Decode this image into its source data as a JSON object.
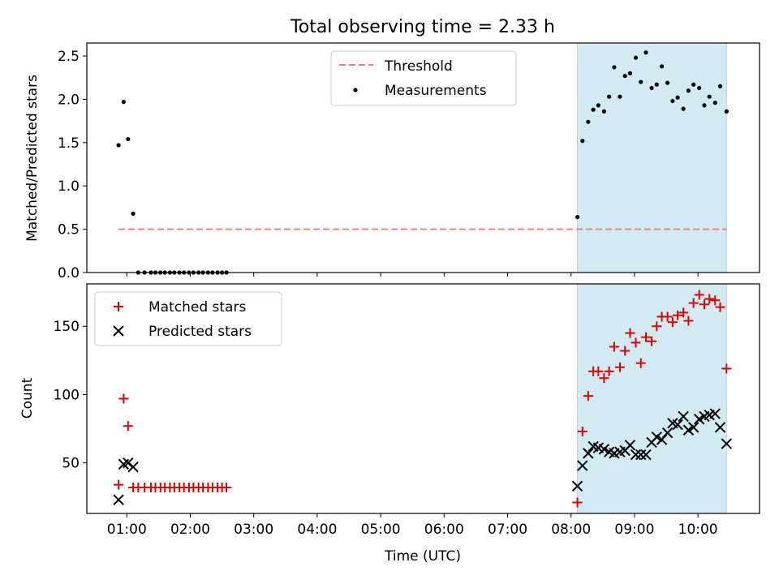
{
  "figure_title": "Total observing time = 2.33 h",
  "x_axis": {
    "label": "Time (UTC)",
    "tick_hours": [
      1,
      2,
      3,
      4,
      5,
      6,
      7,
      8,
      9,
      10
    ],
    "tick_labels": [
      "01:00",
      "02:00",
      "03:00",
      "04:00",
      "05:00",
      "06:00",
      "07:00",
      "08:00",
      "09:00",
      "10:00"
    ]
  },
  "colors": {
    "threshold": "#f08080",
    "measurements": "#000000",
    "matched": "#e00000",
    "predicted": "#000000",
    "highlight": "#add8e6"
  },
  "chart_data": [
    {
      "type": "scatter",
      "title": "Total observing time = 2.33 h",
      "ylabel": "Matched/Predicted stars",
      "xlabel": "",
      "xlim_hours": [
        0.37,
        10.97
      ],
      "ylim": [
        0,
        2.65
      ],
      "yticks": [
        0.0,
        0.5,
        1.0,
        1.5,
        2.0,
        2.5
      ],
      "ytick_labels": [
        "0.0",
        "0.5",
        "1.0",
        "1.5",
        "2.0",
        "2.5"
      ],
      "highlight_span_hours": [
        8.1,
        10.45
      ],
      "legend_position": "upper-center",
      "threshold": {
        "name": "Threshold",
        "value": 0.5,
        "x_range_hours": [
          0.87,
          10.45
        ]
      },
      "series": [
        {
          "name": "Measurements",
          "x_hours": [
            0.87,
            0.95,
            1.02,
            1.1,
            1.18,
            1.28,
            1.38,
            1.45,
            1.53,
            1.6,
            1.68,
            1.75,
            1.83,
            1.9,
            1.98,
            2.05,
            2.13,
            2.2,
            2.28,
            2.35,
            2.43,
            2.5,
            2.57,
            8.1,
            8.18,
            8.27,
            8.35,
            8.43,
            8.52,
            8.6,
            8.68,
            8.77,
            8.85,
            8.93,
            9.02,
            9.1,
            9.18,
            9.27,
            9.35,
            9.43,
            9.52,
            9.6,
            9.68,
            9.77,
            9.85,
            9.93,
            10.02,
            10.1,
            10.18,
            10.27,
            10.35,
            10.45
          ],
          "y": [
            1.47,
            1.97,
            1.54,
            0.68,
            0.0,
            0.0,
            0.0,
            0.0,
            0.0,
            0.0,
            0.0,
            0.0,
            0.0,
            0.0,
            0.0,
            0.0,
            0.0,
            0.0,
            0.0,
            0.0,
            0.0,
            0.0,
            0.0,
            0.64,
            1.52,
            1.74,
            1.88,
            1.93,
            1.86,
            2.03,
            2.37,
            2.03,
            2.27,
            2.3,
            2.48,
            2.2,
            2.54,
            2.13,
            2.17,
            2.38,
            2.19,
            1.98,
            2.02,
            1.89,
            2.1,
            2.17,
            2.13,
            1.93,
            2.03,
            1.96,
            2.15,
            1.86
          ]
        }
      ]
    },
    {
      "type": "scatter",
      "title": "",
      "ylabel": "Count",
      "xlabel": "Time (UTC)",
      "xlim_hours": [
        0.37,
        10.97
      ],
      "ylim": [
        13,
        181
      ],
      "yticks": [
        50,
        100,
        150
      ],
      "ytick_labels": [
        "50",
        "100",
        "150"
      ],
      "highlight_span_hours": [
        8.1,
        10.45
      ],
      "legend_position": "upper-left",
      "series": [
        {
          "name": "Matched stars",
          "marker": "+",
          "x_hours": [
            0.87,
            0.95,
            1.02,
            1.1,
            1.18,
            1.28,
            1.38,
            1.45,
            1.53,
            1.6,
            1.68,
            1.75,
            1.83,
            1.9,
            1.98,
            2.05,
            2.13,
            2.2,
            2.28,
            2.35,
            2.43,
            2.5,
            2.57,
            8.1,
            8.18,
            8.27,
            8.35,
            8.43,
            8.52,
            8.6,
            8.68,
            8.77,
            8.85,
            8.93,
            9.02,
            9.1,
            9.18,
            9.27,
            9.35,
            9.43,
            9.52,
            9.6,
            9.68,
            9.77,
            9.85,
            9.93,
            10.02,
            10.1,
            10.18,
            10.27,
            10.35,
            10.45
          ],
          "y": [
            34,
            97,
            77,
            32,
            32,
            32,
            32,
            32,
            32,
            32,
            32,
            32,
            32,
            32,
            32,
            32,
            32,
            32,
            32,
            32,
            32,
            32,
            32,
            21,
            73,
            99,
            117,
            117,
            112,
            117,
            135,
            120,
            132,
            145,
            138,
            123,
            142,
            139,
            150,
            157,
            157,
            153,
            158,
            160,
            154,
            167,
            173,
            166,
            170,
            169,
            164,
            119
          ]
        },
        {
          "name": "Predicted stars",
          "marker": "x",
          "x_hours": [
            0.87,
            0.95,
            1.02,
            1.1,
            8.1,
            8.18,
            8.27,
            8.35,
            8.43,
            8.52,
            8.6,
            8.68,
            8.77,
            8.85,
            8.93,
            9.02,
            9.1,
            9.18,
            9.27,
            9.35,
            9.43,
            9.52,
            9.6,
            9.68,
            9.77,
            9.85,
            9.93,
            10.02,
            10.1,
            10.18,
            10.27,
            10.35,
            10.45
          ],
          "y": [
            23,
            49,
            50,
            47,
            33,
            48,
            57,
            62,
            61,
            60,
            58,
            57,
            58,
            59,
            63,
            56,
            56,
            56,
            65,
            69,
            67,
            72,
            79,
            78,
            84,
            74,
            76,
            82,
            84,
            85,
            86,
            76,
            64
          ]
        }
      ]
    }
  ]
}
